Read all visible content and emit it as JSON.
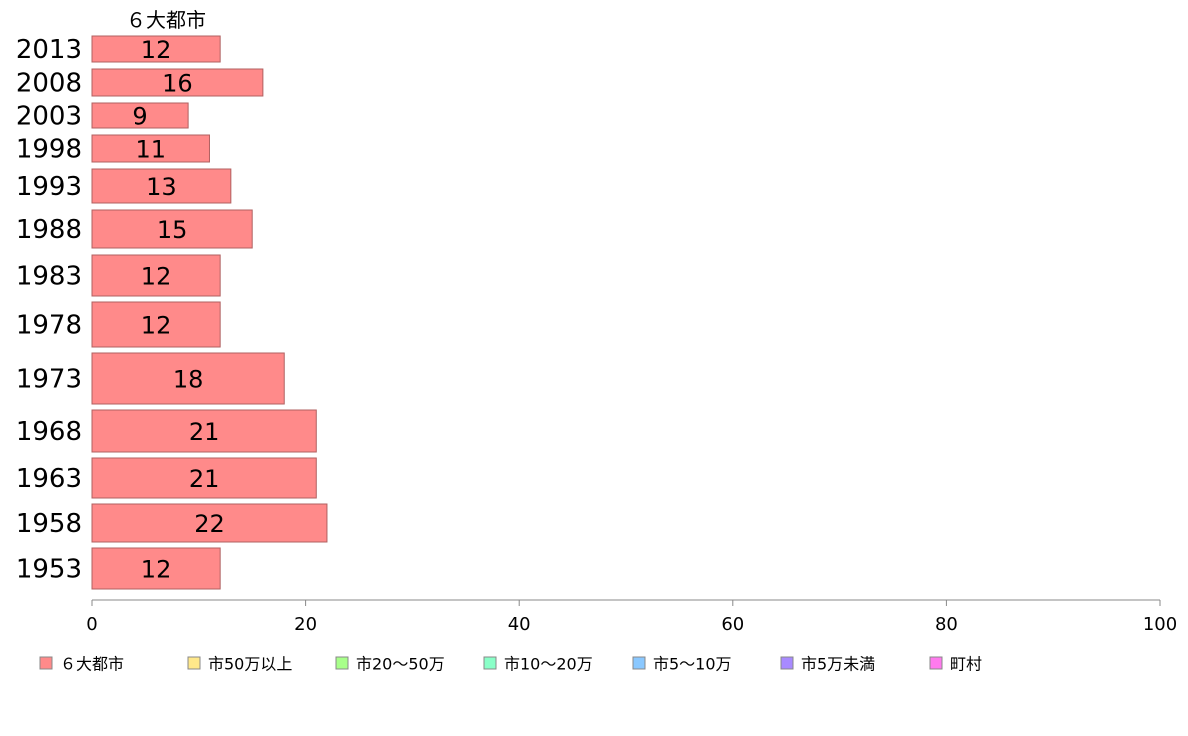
{
  "chart_data": {
    "type": "bar",
    "orientation": "horizontal",
    "categories": [
      "2013",
      "2008",
      "2003",
      "1998",
      "1993",
      "1988",
      "1983",
      "1978",
      "1973",
      "1968",
      "1963",
      "1958",
      "1953"
    ],
    "series": [
      {
        "name": "６大都市",
        "values": [
          12,
          16,
          9,
          11,
          13,
          15,
          12,
          12,
          18,
          21,
          21,
          22,
          12
        ],
        "color": "#ff8a8a"
      }
    ],
    "series_title": "６大都市",
    "xlim": [
      0,
      100
    ],
    "xticks": [
      0,
      20,
      40,
      60,
      80,
      100
    ],
    "grid": false,
    "legend_position": "bottom",
    "legend": [
      {
        "label": "６大都市",
        "color": "#ff8a8a"
      },
      {
        "label": "市50万以上",
        "color": "#ffe88a"
      },
      {
        "label": "市20～50万",
        "color": "#a8ff8a"
      },
      {
        "label": "市10～20万",
        "color": "#8affc8"
      },
      {
        "label": "市5～10万",
        "color": "#8ac8ff"
      },
      {
        "label": "市5万未満",
        "color": "#a88aff"
      },
      {
        "label": "町村",
        "color": "#ff7aee"
      }
    ]
  }
}
